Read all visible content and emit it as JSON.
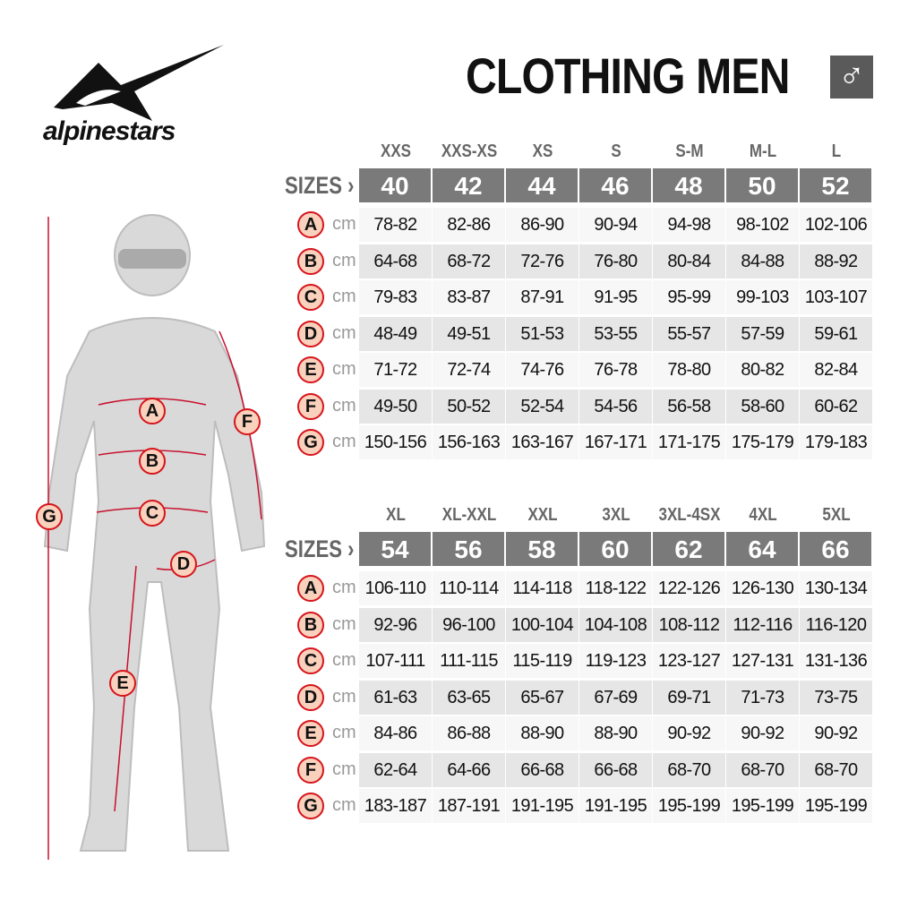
{
  "brand": {
    "name": "alpinestars",
    "logo_icon": "alpinestars-star-logo"
  },
  "header": {
    "title": "CLOTHING MEN",
    "gender_icon": "male-symbol",
    "gender_symbol": "♂"
  },
  "colors": {
    "header_band": "#7a7a7a",
    "badge_border": "#d7141b",
    "badge_fill": "#f9d1bd",
    "row_light": "#f7f7f7",
    "row_dark": "#e6e6e6"
  },
  "figure": {
    "labels": [
      "A",
      "B",
      "C",
      "D",
      "E",
      "F",
      "G"
    ]
  },
  "tables": [
    {
      "sizes_label": "SIZES ›",
      "unit": "cm",
      "size_names": [
        "XXS",
        "XXS-XS",
        "XS",
        "S",
        "S-M",
        "M-L",
        "L"
      ],
      "size_numbers": [
        "40",
        "42",
        "44",
        "46",
        "48",
        "50",
        "52"
      ],
      "rows": [
        {
          "letter": "A",
          "values": [
            "78-82",
            "82-86",
            "86-90",
            "90-94",
            "94-98",
            "98-102",
            "102-106"
          ]
        },
        {
          "letter": "B",
          "values": [
            "64-68",
            "68-72",
            "72-76",
            "76-80",
            "80-84",
            "84-88",
            "88-92"
          ]
        },
        {
          "letter": "C",
          "values": [
            "79-83",
            "83-87",
            "87-91",
            "91-95",
            "95-99",
            "99-103",
            "103-107"
          ]
        },
        {
          "letter": "D",
          "values": [
            "48-49",
            "49-51",
            "51-53",
            "53-55",
            "55-57",
            "57-59",
            "59-61"
          ]
        },
        {
          "letter": "E",
          "values": [
            "71-72",
            "72-74",
            "74-76",
            "76-78",
            "78-80",
            "80-82",
            "82-84"
          ]
        },
        {
          "letter": "F",
          "values": [
            "49-50",
            "50-52",
            "52-54",
            "54-56",
            "56-58",
            "58-60",
            "60-62"
          ]
        },
        {
          "letter": "G",
          "values": [
            "150-156",
            "156-163",
            "163-167",
            "167-171",
            "171-175",
            "175-179",
            "179-183"
          ]
        }
      ]
    },
    {
      "sizes_label": "SIZES ›",
      "unit": "cm",
      "size_names": [
        "XL",
        "XL-XXL",
        "XXL",
        "3XL",
        "3XL-4SX",
        "4XL",
        "5XL"
      ],
      "size_numbers": [
        "54",
        "56",
        "58",
        "60",
        "62",
        "64",
        "66"
      ],
      "rows": [
        {
          "letter": "A",
          "values": [
            "106-110",
            "110-114",
            "114-118",
            "118-122",
            "122-126",
            "126-130",
            "130-134"
          ]
        },
        {
          "letter": "B",
          "values": [
            "92-96",
            "96-100",
            "100-104",
            "104-108",
            "108-112",
            "112-116",
            "116-120"
          ]
        },
        {
          "letter": "C",
          "values": [
            "107-111",
            "111-115",
            "115-119",
            "119-123",
            "123-127",
            "127-131",
            "131-136"
          ]
        },
        {
          "letter": "D",
          "values": [
            "61-63",
            "63-65",
            "65-67",
            "67-69",
            "69-71",
            "71-73",
            "73-75"
          ]
        },
        {
          "letter": "E",
          "values": [
            "84-86",
            "86-88",
            "88-90",
            "88-90",
            "90-92",
            "90-92",
            "90-92"
          ]
        },
        {
          "letter": "F",
          "values": [
            "62-64",
            "64-66",
            "66-68",
            "66-68",
            "68-70",
            "68-70",
            "68-70"
          ]
        },
        {
          "letter": "G",
          "values": [
            "183-187",
            "187-191",
            "191-195",
            "191-195",
            "195-199",
            "195-199",
            "195-199"
          ]
        }
      ]
    }
  ]
}
